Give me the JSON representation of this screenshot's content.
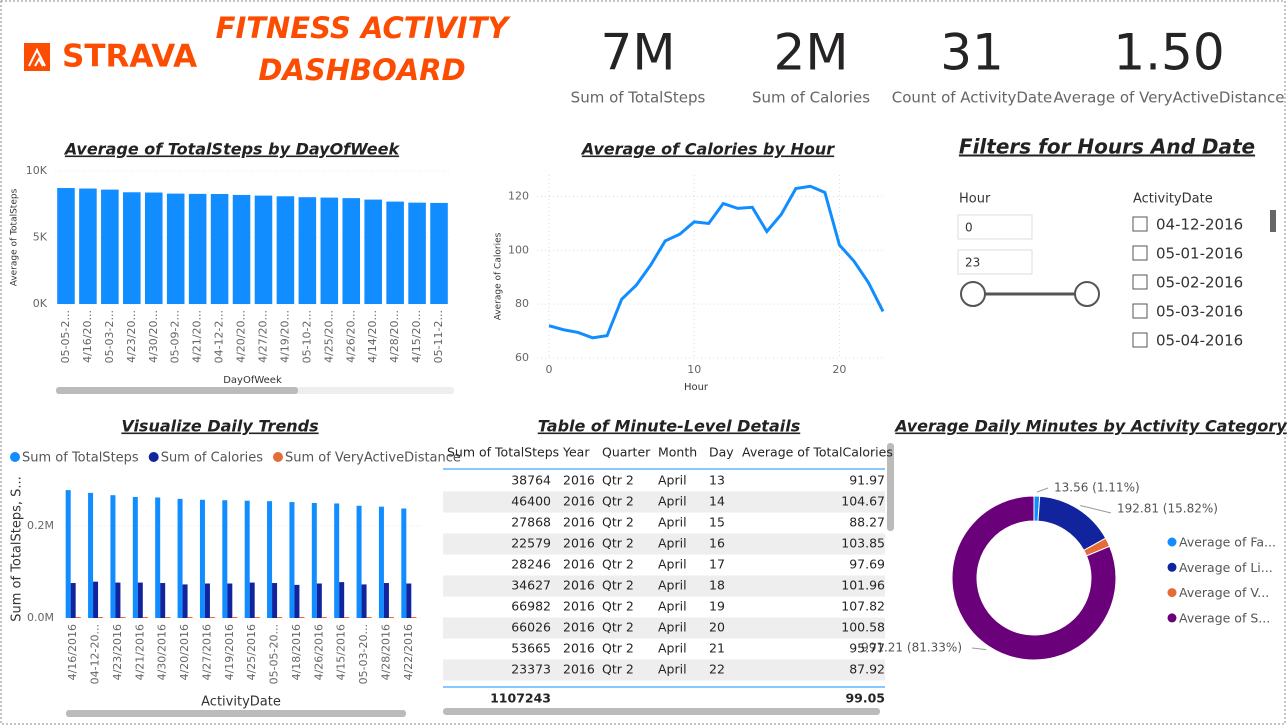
{
  "header": {
    "logo": "STRAVA",
    "title": [
      "FITNESS ACTIVITY",
      "DASHBOARD"
    ]
  },
  "cards": [
    {
      "value": "7M",
      "label": "Sum of TotalSteps"
    },
    {
      "value": "2M",
      "label": "Sum of Calories"
    },
    {
      "value": "31",
      "label": "Count of ActivityDate"
    },
    {
      "value": "1.50",
      "label": "Average of VeryActiveDistance"
    }
  ],
  "chart_data": [
    {
      "type": "bar",
      "title": "Average of TotalSteps by DayOfWeek",
      "x_label": "DayOfWeek",
      "y_label": "Average of TotalSteps",
      "categories": [
        "05-05-2...",
        "4/16/20...",
        "05-03-2...",
        "4/23/20...",
        "4/30/20...",
        "05-09-2...",
        "4/21/20...",
        "04-12-2...",
        "4/20/20...",
        "4/27/20...",
        "4/19/20...",
        "05-10-2...",
        "4/25/20...",
        "4/26/20...",
        "4/14/20...",
        "4/28/20...",
        "4/15/20...",
        "05-11-2..."
      ],
      "values": [
        8720,
        8680,
        8600,
        8400,
        8380,
        8300,
        8280,
        8270,
        8200,
        8150,
        8100,
        8030,
        8000,
        7960,
        7850,
        7700,
        7620,
        7600
      ],
      "color": "#118DFF",
      "ylim": [
        0,
        10000
      ],
      "yticks": [
        {
          "value": 0,
          "label": "0K"
        },
        {
          "value": 5000,
          "label": "5K"
        },
        {
          "value": 10000,
          "label": "10K"
        }
      ],
      "grid": true
    },
    {
      "type": "line",
      "title": "Average of Calories by Hour",
      "x_label": "Hour",
      "y_label": "Average of Calories",
      "x": [
        0,
        1,
        2,
        3,
        4,
        5,
        6,
        7,
        8,
        9,
        10,
        11,
        12,
        13,
        14,
        15,
        16,
        17,
        18,
        19,
        20,
        21,
        22,
        23
      ],
      "values": [
        72,
        70.5,
        69.5,
        67.5,
        68.3,
        81.8,
        87,
        94.5,
        103.5,
        106,
        110.6,
        110,
        117.4,
        115.6,
        116,
        107,
        113.4,
        123,
        123.8,
        121.5,
        102,
        96,
        88,
        77.3
      ],
      "color": "#118DFF",
      "xlim": [
        0,
        23
      ],
      "xticks": [
        0,
        10,
        20
      ],
      "ylim": [
        60,
        128
      ],
      "yticks": [
        60,
        80,
        100,
        120
      ],
      "grid": true
    },
    {
      "type": "bar",
      "title": "Visualize Daily Trends",
      "x_label": "ActivityDate",
      "y_label": "Sum of TotalSteps, S...",
      "categories": [
        "4/16/2016",
        "04-12-20...",
        "4/23/2016",
        "4/21/2016",
        "4/30/2016",
        "4/20/2016",
        "4/27/2016",
        "4/19/2016",
        "4/25/2016",
        "05-05-20...",
        "4/18/2016",
        "4/26/2016",
        "4/15/2016",
        "05-03-20...",
        "4/28/2016",
        "4/22/2016"
      ],
      "series": [
        {
          "name": "Sum of TotalSteps",
          "color": "#118DFF",
          "values": [
            278000,
            272000,
            267000,
            263000,
            262000,
            259000,
            257000,
            256000,
            255000,
            254000,
            252000,
            250000,
            249000,
            244000,
            242000,
            238000
          ]
        },
        {
          "name": "Sum of Calories",
          "color": "#12239E",
          "values": [
            76000,
            79000,
            77000,
            77000,
            76000,
            73000,
            75000,
            75000,
            77000,
            76000,
            72000,
            75000,
            78000,
            73000,
            76000,
            75000
          ]
        },
        {
          "name": "Sum of VeryActiveDistance",
          "color": "#E66C37",
          "values": [
            700,
            650,
            720,
            680,
            600,
            700,
            640,
            660,
            620,
            710,
            590,
            630,
            680,
            600,
            650,
            610
          ]
        }
      ],
      "ylim": [
        0,
        300000
      ],
      "yticks": [
        {
          "value": 0,
          "label": "0.0M"
        },
        {
          "value": 200000,
          "label": "0.2M"
        }
      ],
      "grid": true
    },
    {
      "type": "donut",
      "title": "Average Daily Minutes by Activity Category",
      "categories": [
        "Average of Fa...",
        "Average of Li...",
        "Average of V...",
        "Average of S..."
      ],
      "values": [
        13.56,
        192.81,
        21.2,
        991.21
      ],
      "value_labels": [
        "13.56 (1.11%)",
        "192.81 (15.82%)",
        null,
        "991.21 (81.33%)"
      ],
      "colors": [
        "#118DFF",
        "#12239E",
        "#E66C37",
        "#6B007B"
      ]
    }
  ],
  "filters": {
    "title": "Filters for Hours And Date",
    "hour_label": "Hour",
    "hour_range": [
      0,
      23
    ],
    "date_label": "ActivityDate",
    "dates": [
      "04-12-2016",
      "05-01-2016",
      "05-02-2016",
      "05-03-2016",
      "05-04-2016"
    ]
  },
  "table": {
    "title": "Table of Minute-Level Details",
    "columns": [
      "Sum of TotalSteps",
      "Year",
      "Quarter",
      "Month",
      "Day",
      "Average of TotalCalories"
    ],
    "rows": [
      [
        38764,
        2016,
        "Qtr 2",
        "April",
        13,
        91.97
      ],
      [
        46400,
        2016,
        "Qtr 2",
        "April",
        14,
        104.67
      ],
      [
        27868,
        2016,
        "Qtr 2",
        "April",
        15,
        88.27
      ],
      [
        22579,
        2016,
        "Qtr 2",
        "April",
        16,
        103.85
      ],
      [
        28246,
        2016,
        "Qtr 2",
        "April",
        17,
        97.69
      ],
      [
        34627,
        2016,
        "Qtr 2",
        "April",
        18,
        101.96
      ],
      [
        66982,
        2016,
        "Qtr 2",
        "April",
        19,
        107.82
      ],
      [
        66026,
        2016,
        "Qtr 2",
        "April",
        20,
        100.58
      ],
      [
        53665,
        2016,
        "Qtr 2",
        "April",
        21,
        95.77
      ],
      [
        23373,
        2016,
        "Qtr 2",
        "April",
        22,
        87.92
      ]
    ],
    "total": [
      1107243,
      99.05
    ]
  }
}
